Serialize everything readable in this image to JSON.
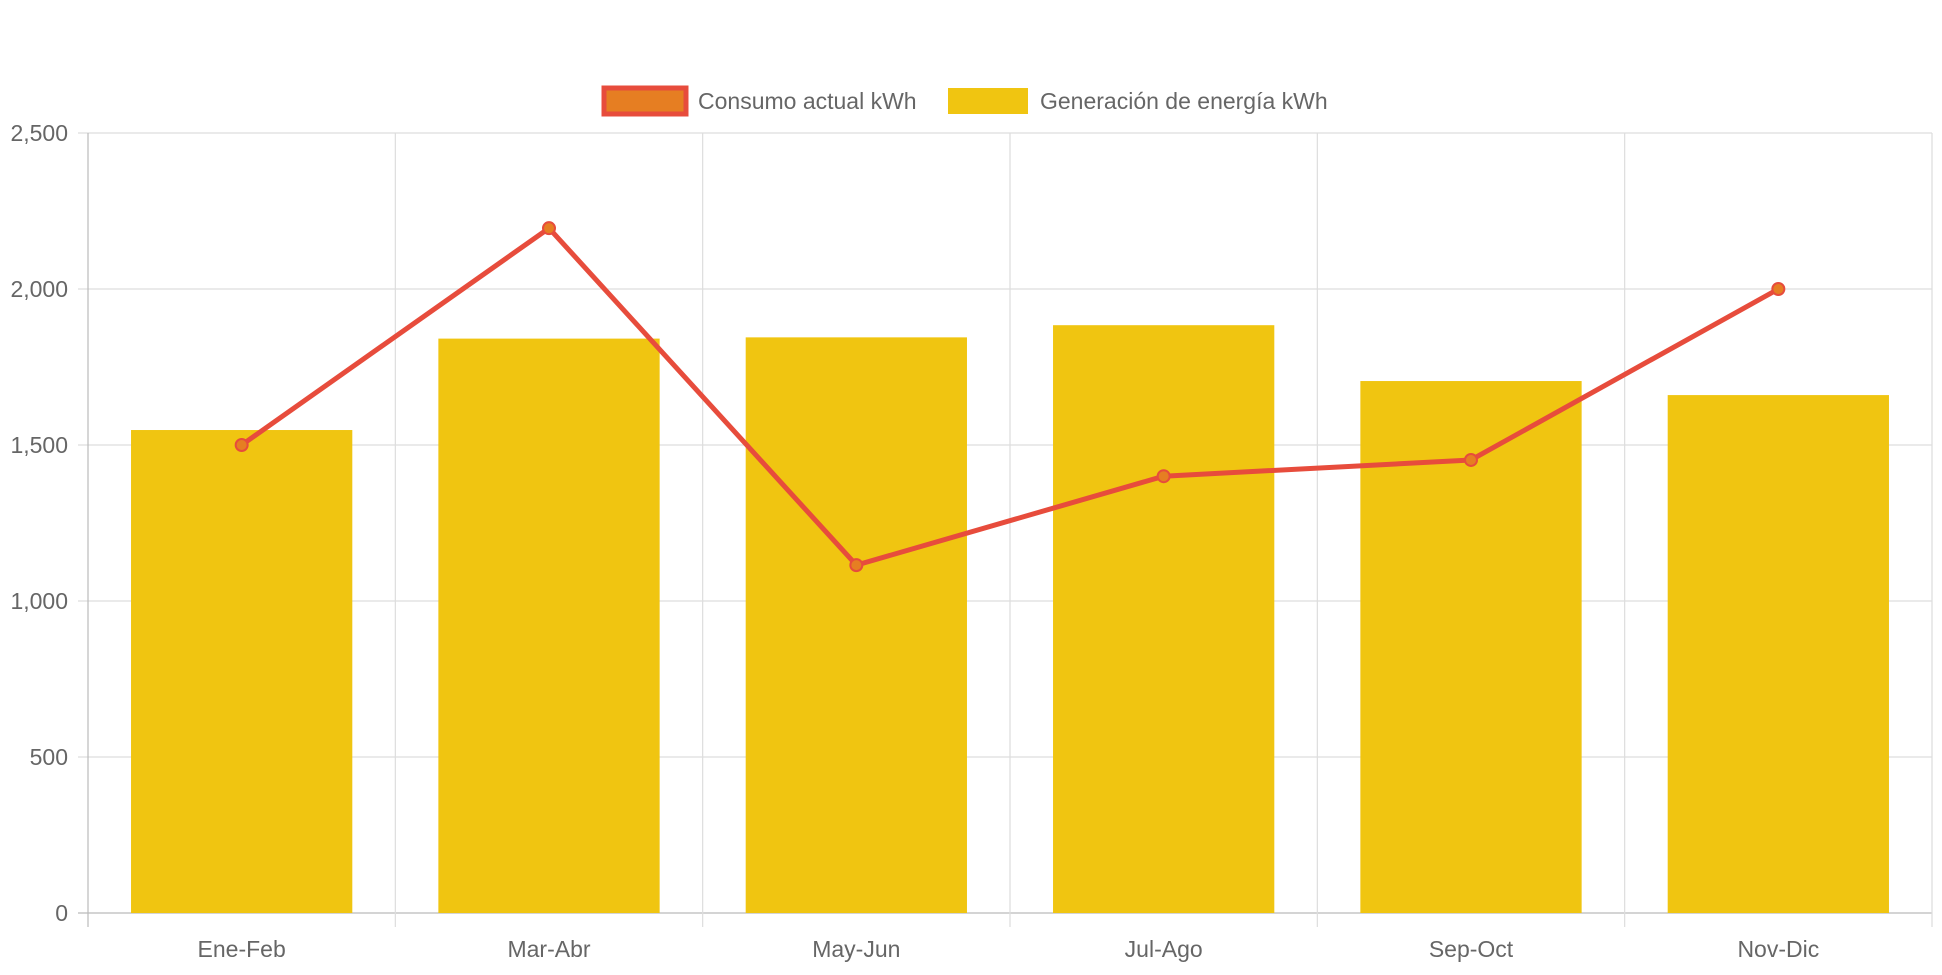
{
  "colors": {
    "bar": "#F0C511",
    "line": "#E74C3C",
    "point_fill": "#E67E22",
    "legend_line_fill": "#E67E22",
    "grid": "#DDDDDD",
    "axis": "#BBBBBB",
    "text": "#666666"
  },
  "chart_data": {
    "type": "bar",
    "categories": [
      "Ene-Feb",
      "Mar-Abr",
      "May-Jun",
      "Jul-Ago",
      "Sep-Oct",
      "Nov-Dic"
    ],
    "series": [
      {
        "name": "Consumo actual kWh",
        "type": "line",
        "values": [
          1500,
          2195,
          1115,
          1400,
          1452,
          2000
        ]
      },
      {
        "name": "Generación de energía kWh",
        "type": "bar",
        "values": [
          1548,
          1841,
          1845,
          1884,
          1705,
          1660
        ]
      }
    ],
    "y_ticks": [
      "0",
      "500",
      "1,000",
      "1,500",
      "2,000",
      "2,500"
    ],
    "ylim": [
      0,
      2500
    ],
    "grid": true,
    "legend_position": "top-center",
    "title": "",
    "xlabel": "",
    "ylabel": ""
  }
}
